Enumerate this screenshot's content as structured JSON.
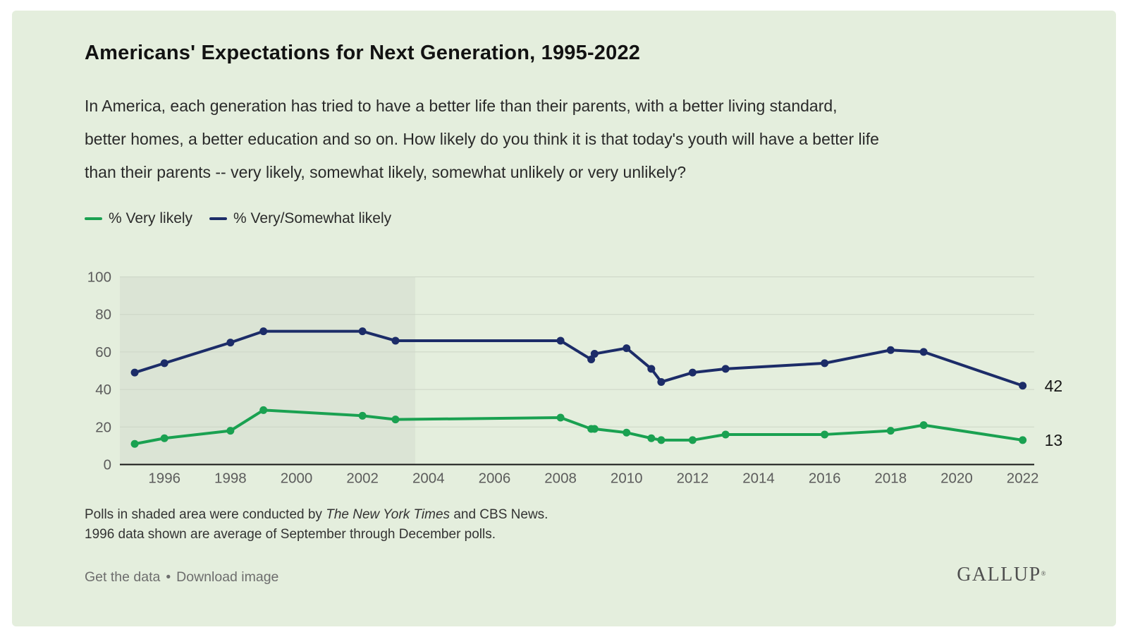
{
  "header": {
    "title": "Americans' Expectations for Next Generation, 1995-2022",
    "subtitle_lines": [
      "In America, each generation has tried to have a better life than their parents, with a better living standard,",
      "better homes, a better education and so on. How likely do you think it is that today's youth will have a better life",
      "than their parents -- very likely, somewhat likely, somewhat unlikely or very unlikely?"
    ]
  },
  "chart_data": {
    "type": "line",
    "x_domain": [
      1994.65,
      2022.35
    ],
    "y_domain": [
      0,
      100
    ],
    "x_ticks": [
      1996,
      1998,
      2000,
      2002,
      2004,
      2006,
      2008,
      2010,
      2012,
      2014,
      2016,
      2018,
      2020,
      2022
    ],
    "y_ticks": [
      0,
      20,
      40,
      60,
      80,
      100
    ],
    "grid": "horizontal",
    "legend_position": "top-left",
    "shaded_region": {
      "x_start": 1994.65,
      "x_end": 2003.6,
      "color": "#dbe4d5",
      "note": "Polls in shaded area were conducted by The New York Times and CBS News."
    },
    "x": [
      1995.1,
      1996,
      1998,
      1999,
      2002,
      2003,
      2008,
      2008.93,
      2009.03,
      2010,
      2010.75,
      2011.05,
      2012,
      2013,
      2016,
      2018,
      2019,
      2022
    ],
    "series": [
      {
        "name": "% Very likely",
        "color": "#1aa151",
        "values": [
          11,
          14,
          18,
          29,
          26,
          24,
          25,
          19,
          19,
          17,
          14,
          13,
          13,
          16,
          16,
          18,
          21,
          13
        ],
        "end_label": "13"
      },
      {
        "name": "% Very/Somewhat likely",
        "color": "#1c2c68",
        "values": [
          49,
          54,
          65,
          71,
          71,
          66,
          66,
          56,
          59,
          62,
          51,
          44,
          49,
          51,
          54,
          61,
          60,
          42
        ],
        "end_label": "42"
      }
    ],
    "colors": {
      "card_background": "#e4eedd",
      "gridline": "#ccd5c6",
      "axis_line": "#151515",
      "tick_label": "#5c5c5c"
    }
  },
  "footnotes": {
    "line1_prefix": "Polls in shaded area were conducted by ",
    "line1_italic": "The New York Times",
    "line1_suffix": " and CBS News.",
    "line2": "1996 data shown are average of September through December polls."
  },
  "footer": {
    "get_data_label": "Get the data",
    "separator": "•",
    "download_label": "Download image",
    "logo": "GALLUP",
    "logo_mark": "®"
  }
}
